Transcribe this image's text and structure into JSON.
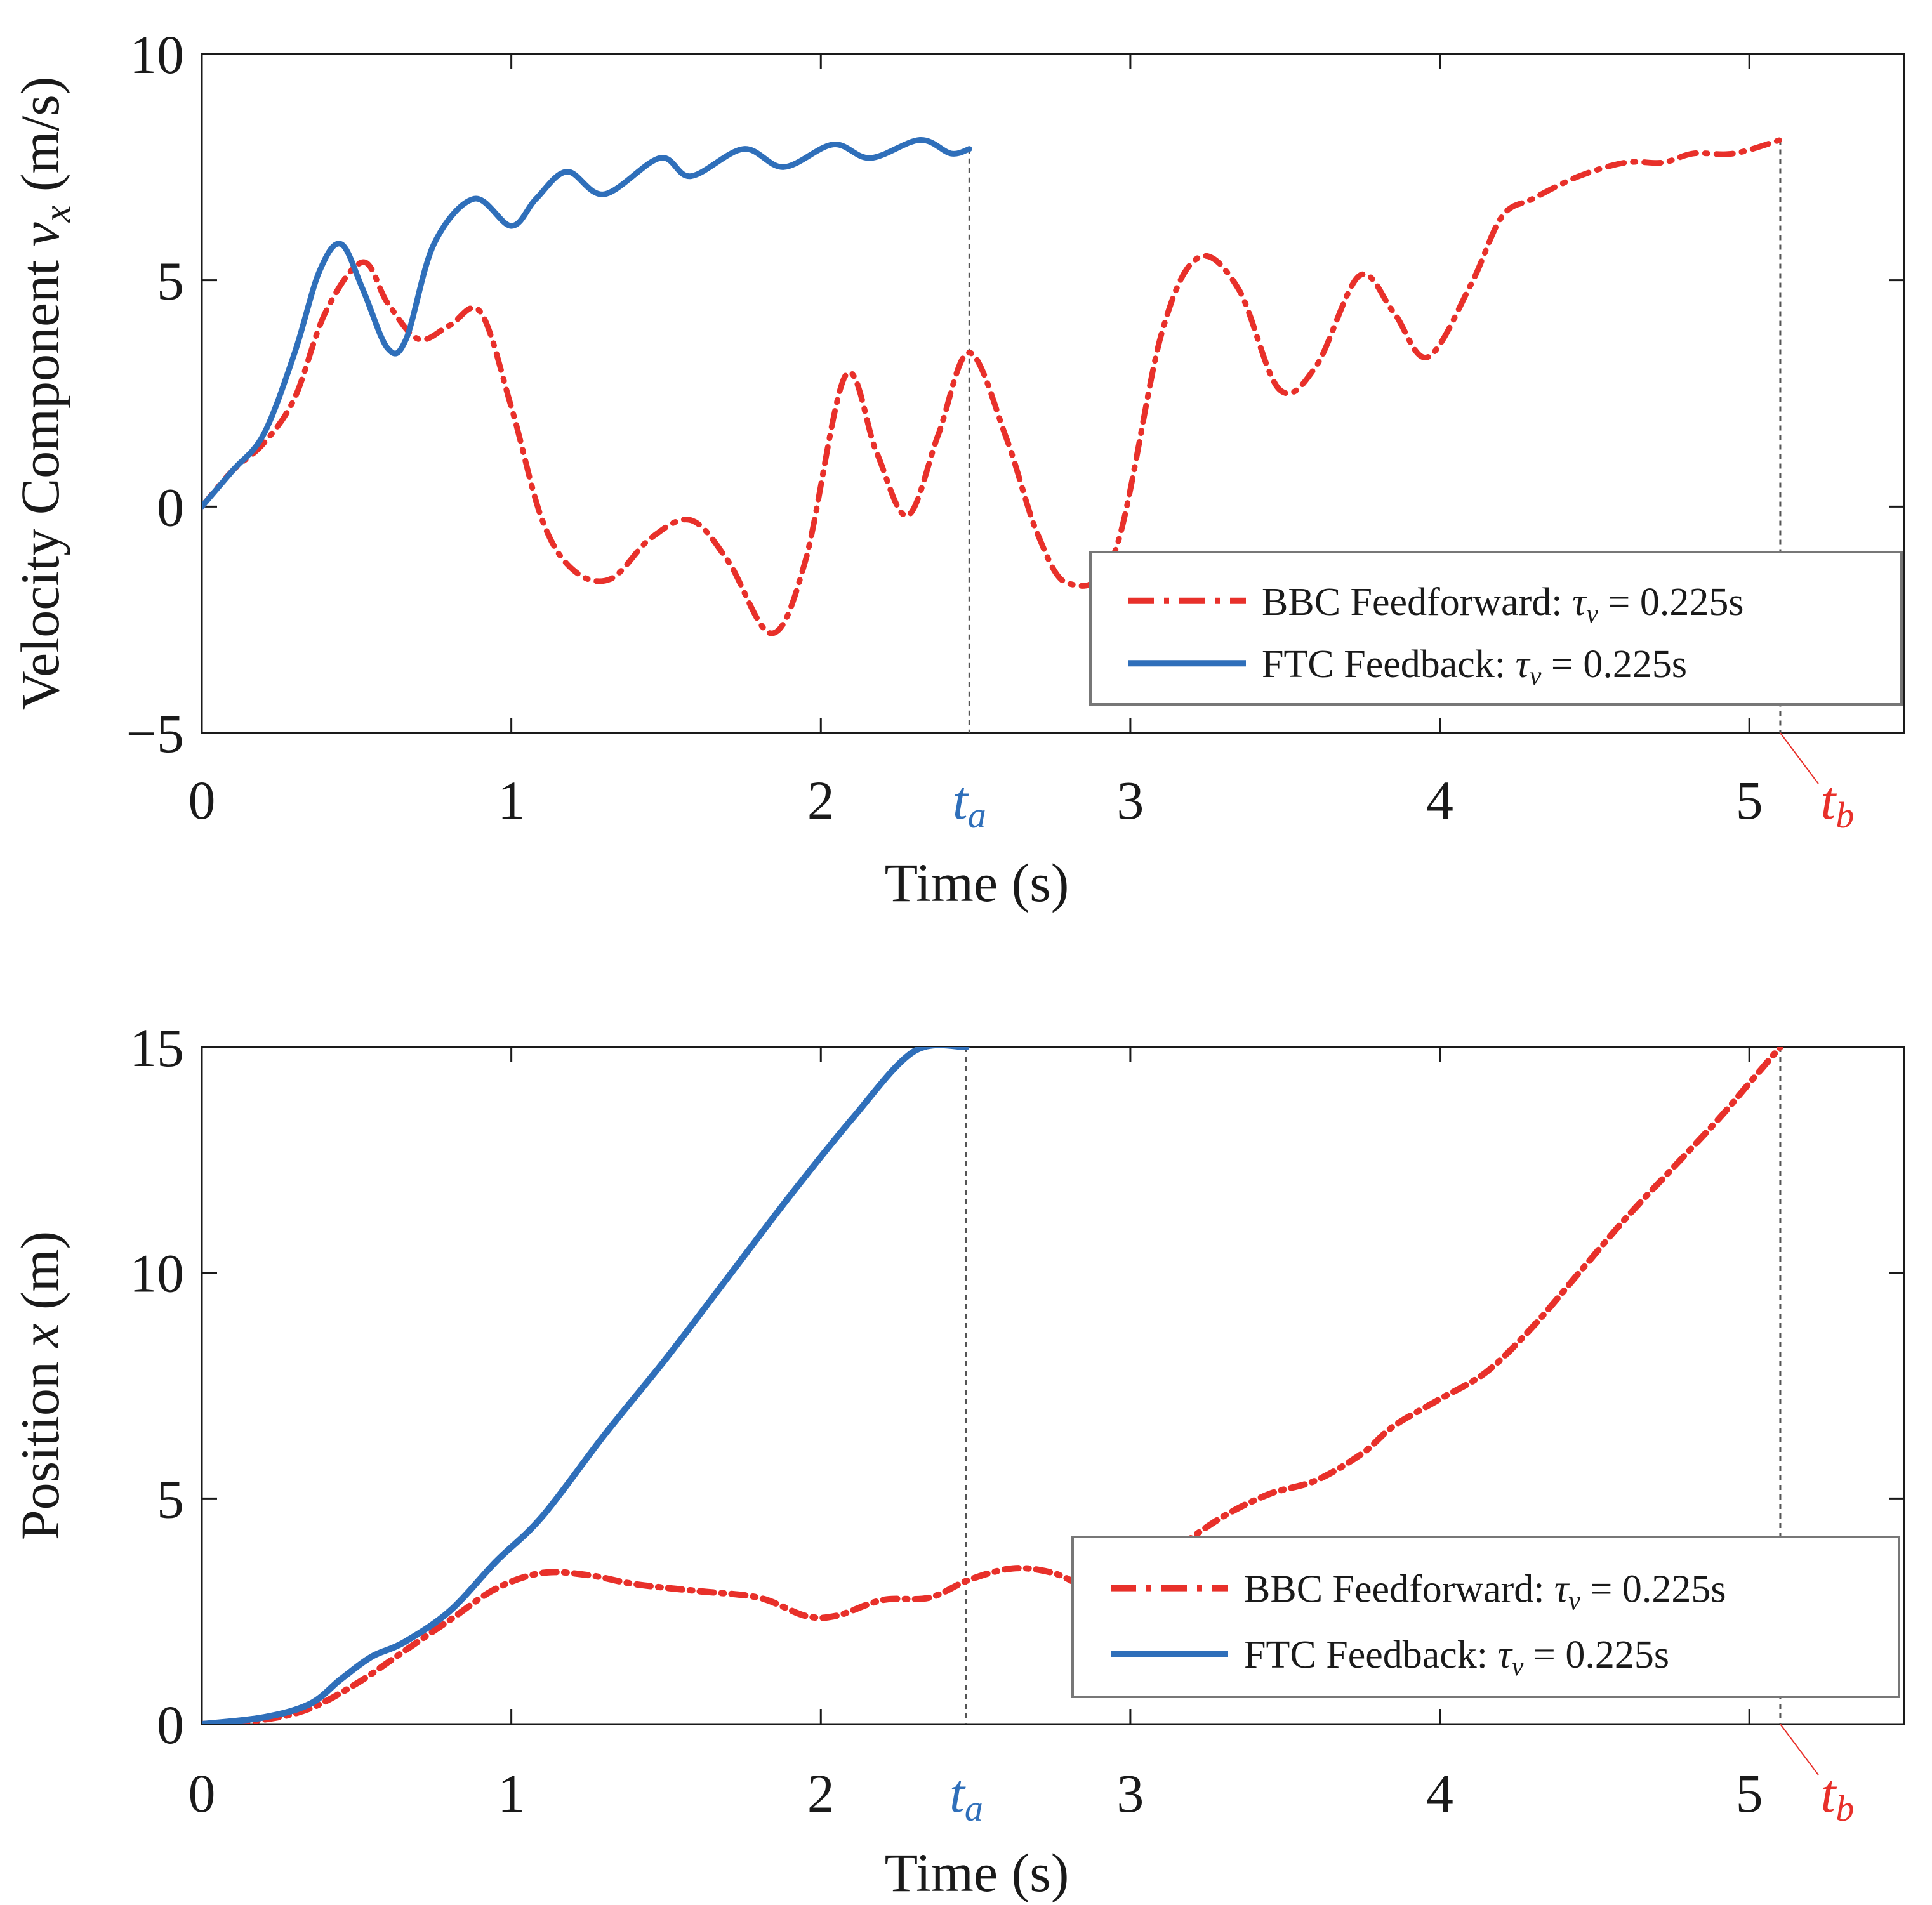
{
  "colors": {
    "bbc": "#e8302a",
    "ftc": "#2f6fba",
    "axis": "#1a1a1a",
    "guide": "#555555"
  },
  "chart_data": [
    {
      "type": "line",
      "xlabel": "Time (s)",
      "ylabel_parts": [
        "Velocity Component ",
        "v",
        "x",
        " (m/s)"
      ],
      "xlim": [
        0,
        5.5
      ],
      "ylim": [
        -5,
        10
      ],
      "xticks": [
        0,
        1,
        2,
        3,
        4,
        5
      ],
      "xtick_labels": [
        "0",
        "1",
        "2",
        "3",
        "4",
        "5"
      ],
      "yticks": [
        -5,
        0,
        5,
        10
      ],
      "ytick_labels": [
        "−5",
        "0",
        "5",
        "10"
      ],
      "grid": false,
      "legend_position": "bottom-right",
      "markers": [
        {
          "label": "t",
          "sub": "a",
          "x": 2.48,
          "color": "#2f6fba"
        },
        {
          "label": "t",
          "sub": "b",
          "x": 5.1,
          "color": "#e8302a"
        }
      ],
      "series": [
        {
          "name": "BBC Feedforward: τv = 0.225s",
          "legend_parts": [
            "BBC Feedforward: ",
            "τ",
            "v",
            " = 0.225s"
          ],
          "style": "dashdot",
          "color": "#e8302a",
          "x": [
            0,
            0.1,
            0.2,
            0.3,
            0.4,
            0.52,
            0.6,
            0.7,
            0.8,
            0.9,
            1.0,
            1.1,
            1.2,
            1.32,
            1.45,
            1.58,
            1.7,
            1.84,
            1.95,
            2.08,
            2.18,
            2.28,
            2.38,
            2.48,
            2.6,
            2.7,
            2.8,
            2.95,
            3.1,
            3.22,
            3.35,
            3.48,
            3.6,
            3.74,
            3.85,
            3.96,
            4.1,
            4.2,
            4.3,
            4.45,
            4.6,
            4.72,
            4.82,
            4.95,
            5.1
          ],
          "y": [
            0,
            0.8,
            1.4,
            2.4,
            4.3,
            5.4,
            4.5,
            3.7,
            4.0,
            4.3,
            2.2,
            -0.3,
            -1.4,
            -1.6,
            -0.7,
            -0.3,
            -1.2,
            -2.8,
            -1.2,
            2.9,
            1.2,
            -0.2,
            1.6,
            3.4,
            1.5,
            -0.6,
            -1.7,
            -1.0,
            3.8,
            5.5,
            4.8,
            2.6,
            3.1,
            5.1,
            4.3,
            3.3,
            4.9,
            6.4,
            6.8,
            7.3,
            7.6,
            7.6,
            7.8,
            7.8,
            8.1
          ]
        },
        {
          "name": "FTC Feedback: τv = 0.225s",
          "legend_parts": [
            "FTC Feedback: ",
            "τ",
            "v",
            " = 0.225s"
          ],
          "style": "solid",
          "color": "#2f6fba",
          "x": [
            0,
            0.1,
            0.2,
            0.3,
            0.38,
            0.45,
            0.52,
            0.6,
            0.66,
            0.75,
            0.88,
            1.0,
            1.08,
            1.18,
            1.3,
            1.48,
            1.58,
            1.75,
            1.88,
            2.04,
            2.16,
            2.32,
            2.42,
            2.48
          ],
          "y": [
            0,
            0.8,
            1.6,
            3.4,
            5.2,
            5.8,
            4.8,
            3.5,
            3.7,
            5.8,
            6.8,
            6.2,
            6.8,
            7.4,
            6.9,
            7.7,
            7.3,
            7.9,
            7.5,
            8.0,
            7.7,
            8.1,
            7.8,
            7.9
          ]
        }
      ]
    },
    {
      "type": "line",
      "xlabel": "Time (s)",
      "ylabel_parts": [
        "Position ",
        "x",
        "",
        " (m)"
      ],
      "xlim": [
        0,
        5.5
      ],
      "ylim": [
        0,
        15
      ],
      "xticks": [
        0,
        1,
        2,
        3,
        4,
        5
      ],
      "xtick_labels": [
        "0",
        "1",
        "2",
        "3",
        "4",
        "5"
      ],
      "yticks": [
        0,
        5,
        10,
        15
      ],
      "ytick_labels": [
        "0",
        "5",
        "10",
        "15"
      ],
      "grid": false,
      "legend_position": "bottom-right",
      "markers": [
        {
          "label": "t",
          "sub": "a",
          "x": 2.47,
          "color": "#2f6fba"
        },
        {
          "label": "t",
          "sub": "b",
          "x": 5.1,
          "color": "#e8302a"
        }
      ],
      "series": [
        {
          "name": "BBC Feedforward: τv = 0.225s",
          "legend_parts": [
            "BBC Feedforward: ",
            "τ",
            "v",
            " = 0.225s"
          ],
          "style": "dashdot",
          "color": "#e8302a",
          "x": [
            0,
            0.2,
            0.35,
            0.5,
            0.65,
            0.8,
            0.95,
            1.1,
            1.25,
            1.4,
            1.6,
            1.8,
            1.95,
            2.05,
            2.2,
            2.35,
            2.48,
            2.62,
            2.75,
            2.88,
            3.0,
            3.15,
            3.3,
            3.45,
            3.6,
            3.75,
            3.85,
            4.0,
            4.15,
            4.3,
            4.45,
            4.6,
            4.75,
            4.9,
            5.0,
            5.1
          ],
          "y": [
            0,
            0.1,
            0.35,
            0.9,
            1.6,
            2.3,
            3.0,
            3.35,
            3.3,
            3.1,
            2.95,
            2.8,
            2.4,
            2.4,
            2.75,
            2.8,
            3.2,
            3.45,
            3.35,
            3.0,
            3.2,
            3.9,
            4.6,
            5.1,
            5.4,
            6.0,
            6.6,
            7.2,
            7.8,
            8.8,
            10.0,
            11.2,
            12.3,
            13.4,
            14.2,
            15.0
          ]
        },
        {
          "name": "FTC Feedback: τv = 0.225s",
          "legend_parts": [
            "FTC Feedback: ",
            "τ",
            "v",
            " = 0.225s"
          ],
          "style": "solid",
          "color": "#2f6fba",
          "x": [
            0,
            0.2,
            0.35,
            0.45,
            0.55,
            0.65,
            0.8,
            0.95,
            1.1,
            1.3,
            1.5,
            1.7,
            1.9,
            2.1,
            2.3,
            2.47
          ],
          "y": [
            0,
            0.15,
            0.45,
            1.0,
            1.5,
            1.8,
            2.5,
            3.6,
            4.6,
            6.4,
            8.1,
            9.9,
            11.7,
            13.4,
            14.9,
            15.0
          ]
        }
      ]
    }
  ]
}
